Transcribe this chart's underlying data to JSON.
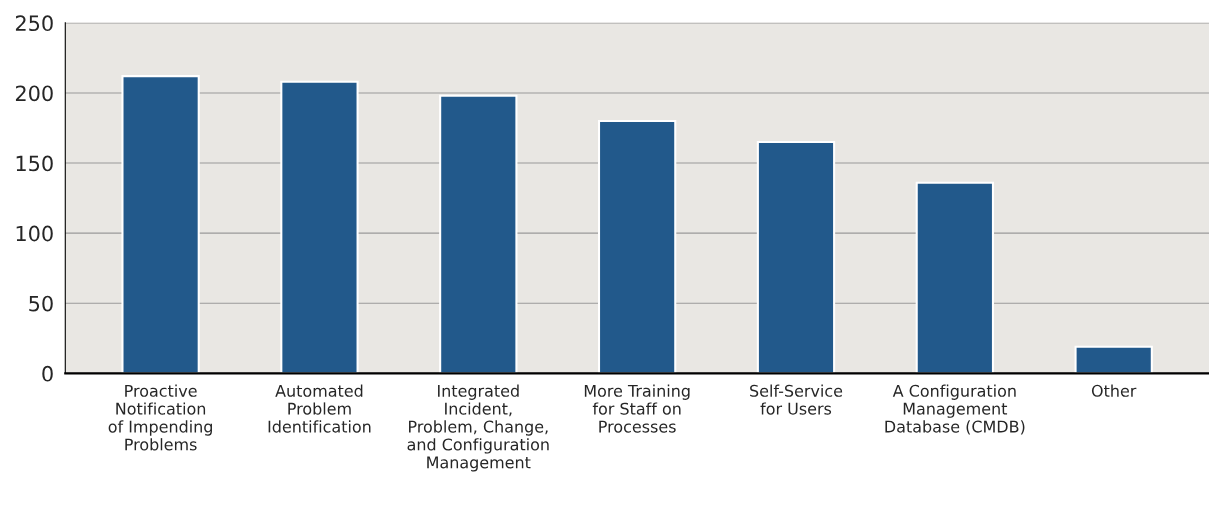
{
  "chart_data": {
    "type": "bar",
    "categories": [
      "Proactive\nNotification\nof Impending\nProblems",
      "Automated\nProblem\nIdentification",
      "Integrated\nIncident,\nProblem, Change,\nand Configuration\nManagement",
      "More Training\nfor Staff on\nProcesses",
      "Self-Service\nfor Users",
      "A Configuration\nManagement\nDatabase (CMDB)",
      "Other"
    ],
    "values": [
      212,
      208,
      198,
      180,
      165,
      136,
      19
    ],
    "color": "#22598b",
    "ylim": [
      0,
      250
    ],
    "yticks": [
      0,
      50,
      100,
      150,
      200,
      250
    ],
    "grid": "y"
  }
}
